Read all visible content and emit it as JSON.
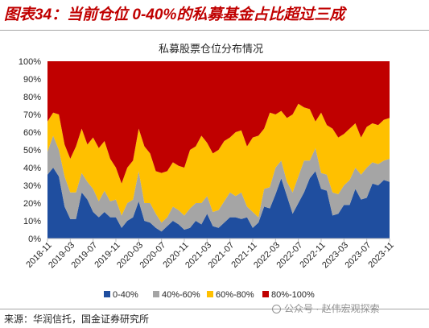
{
  "figure": {
    "label": "图表34：当前仓位 0-40%的私募基金占比超过三成"
  },
  "colors": {
    "heading": "#c00000"
  },
  "chart_data": {
    "type": "area",
    "stacked": true,
    "title": "私募股票仓位分布情况",
    "ylim": [
      0,
      100
    ],
    "yticks": [
      "0%",
      "10%",
      "20%",
      "30%",
      "40%",
      "50%",
      "60%",
      "70%",
      "80%",
      "90%",
      "100%"
    ],
    "x_ticks": [
      "2018-11",
      "2019-03",
      "2019-07",
      "2019-11",
      "2020-03",
      "2020-07",
      "2020-11",
      "2021-03",
      "2021-07",
      "2021-11",
      "2022-03",
      "2022-07",
      "2022-11",
      "2023-03",
      "2023-07",
      "2023-11"
    ],
    "legend": "bottom",
    "grid": false,
    "series": [
      {
        "name": "0-40%",
        "color": "#1f4e9f",
        "values": [
          36,
          40,
          35,
          18,
          11,
          11,
          26,
          22,
          15,
          12,
          15,
          12,
          12,
          6,
          10,
          12,
          21,
          10,
          9,
          6,
          4,
          7,
          10,
          8,
          5,
          6,
          10,
          8,
          14,
          7,
          6,
          9,
          12,
          12,
          11,
          12,
          6,
          9,
          18,
          17,
          25,
          34,
          24,
          14,
          20,
          26,
          34,
          38,
          28,
          27,
          13,
          14,
          19,
          19,
          28,
          22,
          23,
          31,
          30,
          33,
          32
        ]
      },
      {
        "name": "40%-60%",
        "color": "#a5a5a5",
        "values": [
          13,
          18,
          15,
          17,
          15,
          15,
          11,
          10,
          13,
          9,
          12,
          9,
          10,
          7,
          10,
          10,
          17,
          10,
          11,
          8,
          5,
          5,
          8,
          8,
          8,
          11,
          10,
          12,
          10,
          8,
          10,
          12,
          14,
          12,
          15,
          6,
          9,
          3,
          10,
          12,
          15,
          10,
          8,
          12,
          15,
          18,
          10,
          13,
          9,
          9,
          13,
          11,
          11,
          14,
          12,
          14,
          17,
          12,
          12,
          11,
          13
        ]
      },
      {
        "name": "60%-80%",
        "color": "#ffc000",
        "values": [
          17,
          13,
          20,
          18,
          19,
          26,
          25,
          21,
          29,
          30,
          28,
          24,
          18,
          18,
          20,
          22,
          24,
          32,
          28,
          24,
          28,
          26,
          25,
          25,
          27,
          33,
          32,
          38,
          30,
          33,
          34,
          34,
          31,
          36,
          35,
          34,
          42,
          46,
          34,
          42,
          30,
          28,
          36,
          44,
          41,
          30,
          29,
          15,
          34,
          28,
          36,
          32,
          29,
          29,
          25,
          21,
          23,
          22,
          22,
          23,
          23
        ]
      },
      {
        "name": "80%-100%",
        "color": "#c00000",
        "values": [
          34,
          29,
          30,
          47,
          55,
          48,
          38,
          47,
          43,
          49,
          45,
          55,
          60,
          69,
          60,
          56,
          38,
          48,
          52,
          62,
          63,
          62,
          57,
          59,
          60,
          50,
          48,
          42,
          46,
          52,
          50,
          45,
          43,
          40,
          39,
          48,
          43,
          42,
          38,
          29,
          30,
          28,
          32,
          30,
          24,
          26,
          27,
          34,
          29,
          36,
          38,
          43,
          41,
          38,
          35,
          43,
          37,
          35,
          36,
          33,
          32
        ]
      }
    ]
  },
  "source": "来源：华润信托，国金证券研究所",
  "watermark": "公众号 · 赵伟宏观探索"
}
